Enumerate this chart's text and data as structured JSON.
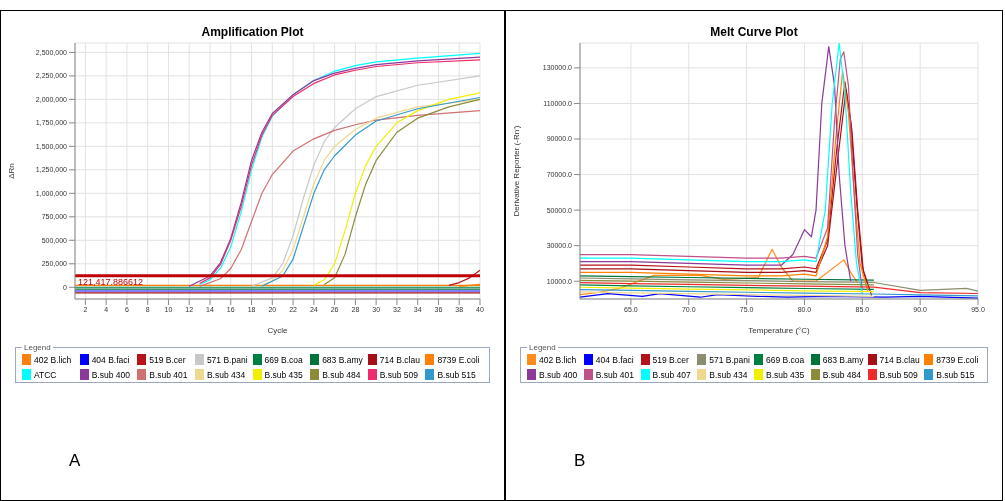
{
  "chart_data": [
    {
      "type": "line",
      "title": "Amplification Plot",
      "xlabel": "Cycle",
      "ylabel": "ΔRn",
      "legend_title": "Legend",
      "legend": "bottom",
      "grid": true,
      "marker": "none",
      "line_style": "solid",
      "xlim": [
        1,
        40
      ],
      "xticks": [
        2,
        4,
        6,
        8,
        10,
        12,
        14,
        16,
        18,
        20,
        22,
        24,
        26,
        28,
        30,
        32,
        34,
        36,
        38,
        40
      ],
      "ylim": [
        -125000,
        2600000
      ],
      "yticks": [
        {
          "value": 0,
          "label": "0"
        },
        {
          "value": 250000,
          "label": "250,000"
        },
        {
          "value": 500000,
          "label": "500,000"
        },
        {
          "value": 750000,
          "label": "750,000"
        },
        {
          "value": 1000000,
          "label": "1,000,000"
        },
        {
          "value": 1250000,
          "label": "1,250,000"
        },
        {
          "value": 1500000,
          "label": "1,500,000"
        },
        {
          "value": 1750000,
          "label": "1,750,000"
        },
        {
          "value": 2000000,
          "label": "2,000,000"
        },
        {
          "value": 2250000,
          "label": "2,250,000"
        },
        {
          "value": 2500000,
          "label": "2,500,000"
        }
      ],
      "ref_lines": [
        {
          "axis": "y",
          "value": 121417.886612,
          "label": "121,417.886612",
          "color": "#c00000"
        }
      ],
      "annotations": [
        "A"
      ],
      "series": [
        {
          "name": "402 B.lich",
          "color": "#ff7f0e",
          "x": [
            1,
            40
          ],
          "values": [
            20000,
            20000
          ]
        },
        {
          "name": "404 B.faci",
          "color": "#0000ff",
          "x": [
            1,
            40
          ],
          "values": [
            -40000,
            -40000
          ]
        },
        {
          "name": "519 B.cer",
          "color": "#b5121b",
          "x": [
            37,
            38,
            39,
            40
          ],
          "values": [
            20000,
            50000,
            100000,
            180000
          ]
        },
        {
          "name": "571 B.pani",
          "color": "#c8c8c8",
          "x": [
            18,
            20,
            21,
            22,
            23,
            24,
            25,
            26,
            28,
            30,
            34,
            40
          ],
          "values": [
            10000,
            100000,
            250000,
            550000,
            950000,
            1300000,
            1550000,
            1700000,
            1900000,
            2030000,
            2150000,
            2250000
          ]
        },
        {
          "name": "669 B.coa",
          "color": "#008040",
          "x": [
            1,
            40
          ],
          "values": [
            0,
            0
          ]
        },
        {
          "name": "683 B.amy",
          "color": "#00733a",
          "x": [
            1,
            40
          ],
          "values": [
            -20000,
            -20000
          ]
        },
        {
          "name": "714 B.clau",
          "color": "#a50f15",
          "x": [
            1,
            40
          ],
          "values": [
            -60000,
            -60000
          ]
        },
        {
          "name": "8739 E.coli",
          "color": "#ff8000",
          "x": [
            38,
            40
          ],
          "values": [
            10000,
            30000
          ]
        },
        {
          "name": "ATCC",
          "color": "#00ffff",
          "x": [
            13,
            14,
            15,
            16,
            17,
            18,
            19,
            20,
            22,
            24,
            26,
            28,
            30,
            34,
            40
          ],
          "values": [
            30000,
            80000,
            200000,
            430000,
            800000,
            1250000,
            1600000,
            1820000,
            2050000,
            2200000,
            2300000,
            2360000,
            2400000,
            2440000,
            2490000
          ]
        },
        {
          "name": "B.sub 400",
          "color": "#8b3a9a",
          "x": [
            12,
            14,
            15,
            16,
            17,
            18,
            19,
            20,
            22,
            24,
            26,
            28,
            30,
            34,
            40
          ],
          "values": [
            10000,
            120000,
            260000,
            520000,
            900000,
            1350000,
            1650000,
            1850000,
            2050000,
            2200000,
            2280000,
            2330000,
            2370000,
            2410000,
            2450000
          ]
        },
        {
          "name": "B.sub 401",
          "color": "#d07070",
          "x": [
            13,
            15,
            16,
            17,
            18,
            19,
            20,
            22,
            24,
            26,
            28,
            30,
            34,
            40
          ],
          "values": [
            10000,
            90000,
            200000,
            400000,
            700000,
            1000000,
            1200000,
            1450000,
            1580000,
            1670000,
            1730000,
            1780000,
            1830000,
            1880000
          ]
        },
        {
          "name": "B.sub 434",
          "color": "#eed890",
          "x": [
            19,
            20,
            21,
            22,
            23,
            24,
            25,
            26,
            28,
            30,
            34,
            40
          ],
          "values": [
            20000,
            70000,
            180000,
            400000,
            750000,
            1100000,
            1350000,
            1500000,
            1680000,
            1800000,
            1920000,
            2000000
          ]
        },
        {
          "name": "B.sub 435",
          "color": "#f0f000",
          "x": [
            24,
            25,
            26,
            27,
            28,
            29,
            30,
            32,
            34,
            37,
            40
          ],
          "values": [
            20000,
            80000,
            250000,
            600000,
            1000000,
            1300000,
            1500000,
            1750000,
            1880000,
            2000000,
            2070000
          ]
        },
        {
          "name": "B.sub 484",
          "color": "#8b8b3a",
          "x": [
            25,
            26,
            27,
            28,
            29,
            30,
            32,
            34,
            37,
            40
          ],
          "values": [
            30000,
            100000,
            350000,
            750000,
            1100000,
            1350000,
            1650000,
            1800000,
            1920000,
            2000000
          ]
        },
        {
          "name": "B.sub 509",
          "color": "#ee2b6b",
          "x": [
            13,
            14,
            15,
            16,
            17,
            18,
            19,
            20,
            22,
            24,
            26,
            28,
            30,
            34,
            40
          ],
          "values": [
            40000,
            100000,
            240000,
            500000,
            860000,
            1300000,
            1620000,
            1830000,
            2030000,
            2170000,
            2260000,
            2310000,
            2350000,
            2390000,
            2420000
          ]
        },
        {
          "name": "B.sub 515",
          "color": "#3399cc",
          "x": [
            19,
            21,
            22,
            23,
            24,
            25,
            26,
            28,
            30,
            34,
            40
          ],
          "values": [
            10000,
            120000,
            300000,
            650000,
            1000000,
            1250000,
            1400000,
            1620000,
            1770000,
            1900000,
            2020000
          ]
        }
      ]
    },
    {
      "type": "line",
      "title": "Melt Curve Plot",
      "xlabel": "Temperature (°C)",
      "ylabel": "Derivative Reporter (-Rn')",
      "legend_title": "Legend",
      "legend": "bottom",
      "grid": true,
      "marker": "none",
      "line_style": "solid",
      "xlim": [
        60.6,
        95
      ],
      "xticks": [
        {
          "value": 65,
          "label": "65.0"
        },
        {
          "value": 70,
          "label": "70.0"
        },
        {
          "value": 75,
          "label": "75.0"
        },
        {
          "value": 80,
          "label": "80.0"
        },
        {
          "value": 85,
          "label": "85.0"
        },
        {
          "value": 90,
          "label": "90.0"
        },
        {
          "value": 95,
          "label": "95.0"
        }
      ],
      "ylim": [
        0,
        144000
      ],
      "yticks": [
        {
          "value": 10000,
          "label": "10000.0"
        },
        {
          "value": 30000,
          "label": "30000.0"
        },
        {
          "value": 50000,
          "label": "50000.0"
        },
        {
          "value": 70000,
          "label": "70000.0"
        },
        {
          "value": 90000,
          "label": "90000.0"
        },
        {
          "value": 110000,
          "label": "110000.0"
        },
        {
          "value": 130000,
          "label": "130000.0"
        }
      ],
      "annotations": [
        "B"
      ],
      "series": [
        {
          "name": "402 B.lich",
          "color": "#ff8c1a",
          "x": [
            60.6,
            62,
            64,
            67,
            71,
            73,
            76,
            77.2,
            78,
            79,
            81,
            83.4,
            84,
            84.6
          ],
          "values": [
            2500,
            3500,
            6000,
            13300,
            13300,
            11000,
            12000,
            28000,
            18000,
            10000,
            10000,
            22000,
            15000,
            9000
          ]
        },
        {
          "name": "404 B.faci",
          "color": "#0000ff",
          "x": [
            60.6,
            63,
            66,
            67.5,
            71,
            72.5,
            76,
            78.5,
            82,
            87,
            90,
            95
          ],
          "values": [
            1000,
            3000,
            1500,
            3000,
            1000,
            2500,
            1500,
            1000,
            1500,
            1000,
            1500,
            500
          ]
        },
        {
          "name": "519 B.cer",
          "color": "#b5121b",
          "x": [
            60.6,
            65,
            70,
            75,
            78,
            80,
            81,
            82,
            82.8,
            83.5,
            84,
            84.5,
            85,
            85.8
          ],
          "values": [
            19000,
            19000,
            18000,
            17000,
            17000,
            18000,
            17000,
            33000,
            85000,
            122000,
            100000,
            55000,
            18000,
            2000
          ]
        },
        {
          "name": "571 B.pani",
          "color": "#8c8c6e",
          "x": [
            60.6,
            65,
            70,
            75,
            80,
            86,
            90,
            94,
            95
          ],
          "values": [
            11800,
            11300,
            10800,
            10300,
            9800,
            9300,
            4900,
            6000,
            4400
          ]
        },
        {
          "name": "669 B.coa",
          "color": "#008040",
          "x": [
            60.6,
            65,
            70,
            75,
            80,
            86
          ],
          "values": [
            7900,
            7400,
            6900,
            6400,
            5900,
            5400
          ]
        },
        {
          "name": "683 B.amy",
          "color": "#00733a",
          "x": [
            60.6,
            65,
            70,
            75,
            80,
            86
          ],
          "values": [
            13000,
            12600,
            12100,
            11600,
            11100,
            10600
          ]
        },
        {
          "name": "714 B.clau",
          "color": "#a50f15",
          "x": [
            60.6,
            65,
            70,
            75,
            78,
            80,
            81,
            82,
            82.9,
            83.6,
            84.1,
            84.6,
            85.1,
            85.6
          ],
          "values": [
            17000,
            17000,
            16000,
            15000,
            15000,
            16000,
            15000,
            30000,
            80000,
            118000,
            95000,
            50000,
            15000,
            6000
          ]
        },
        {
          "name": "8739 E.coli",
          "color": "#ff8000",
          "x": [
            60.6,
            65,
            70,
            75,
            78,
            80,
            81,
            82,
            82.7,
            83.3,
            83.8,
            84.3,
            84.8,
            85.5
          ],
          "values": [
            15000,
            15000,
            14000,
            13000,
            13000,
            14000,
            13000,
            35000,
            90000,
            128000,
            105000,
            60000,
            20000,
            4000
          ]
        },
        {
          "name": "B.sub 400",
          "color": "#8b3a9a",
          "x": [
            60.6,
            65,
            70,
            75,
            78,
            79,
            80,
            80.6,
            81,
            81.5,
            82.1,
            82.6,
            83,
            83.5,
            84
          ],
          "values": [
            21000,
            21000,
            20000,
            19000,
            19000,
            25000,
            39000,
            35000,
            50000,
            110000,
            142000,
            120000,
            70000,
            30000,
            10000
          ]
        },
        {
          "name": "B.sub 401",
          "color": "#c0508a",
          "x": [
            60.6,
            65,
            70,
            75,
            78,
            80,
            81,
            82,
            82.6,
            83.1,
            83.4,
            83.8,
            84.2,
            84.6,
            85
          ],
          "values": [
            25000,
            25000,
            24000,
            23000,
            23000,
            24000,
            23000,
            40000,
            100000,
            135000,
            139000,
            120000,
            70000,
            25000,
            5000
          ]
        },
        {
          "name": "B.sub 407",
          "color": "#00ffff",
          "x": [
            60.6,
            65,
            70,
            75,
            78,
            80,
            81,
            81.8,
            82.4,
            83,
            83.5,
            84,
            84.5,
            85
          ],
          "values": [
            23000,
            23000,
            22000,
            21000,
            21000,
            22000,
            21000,
            50000,
            110000,
            144000,
            115000,
            60000,
            20000,
            3000
          ]
        },
        {
          "name": "B.sub 434",
          "color": "#eed890",
          "x": [
            60.6,
            65,
            70,
            75,
            80,
            86
          ],
          "values": [
            4000,
            3500,
            3000,
            2500,
            2000,
            1500
          ]
        },
        {
          "name": "B.sub 435",
          "color": "#f0f000",
          "x": [
            60.6,
            65,
            70,
            75,
            80,
            86
          ],
          "values": [
            6600,
            6100,
            5600,
            5100,
            4600,
            4100
          ]
        },
        {
          "name": "B.sub 484",
          "color": "#8b8b3a",
          "x": [
            60.6,
            65,
            70,
            75,
            80,
            86
          ],
          "values": [
            10500,
            10000,
            9500,
            9000,
            8500,
            8000
          ]
        },
        {
          "name": "B.sub 509",
          "color": "#ee2b2b",
          "x": [
            60.6,
            65,
            70,
            75,
            80,
            86,
            90,
            95
          ],
          "values": [
            9200,
            8700,
            8200,
            7700,
            7200,
            6700,
            3600,
            3100
          ]
        },
        {
          "name": "B.sub 515",
          "color": "#3399cc",
          "x": [
            60.6,
            65,
            70,
            75,
            80,
            86,
            90,
            95
          ],
          "values": [
            5300,
            4800,
            4300,
            3800,
            3300,
            2800,
            2300,
            1800
          ]
        }
      ]
    }
  ]
}
